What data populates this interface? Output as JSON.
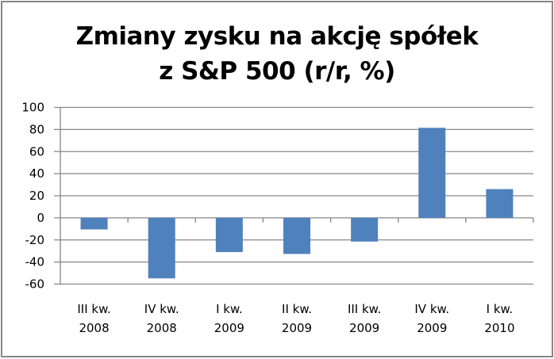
{
  "colors": {
    "bar": "#4F81BD",
    "grid": "#868686",
    "border": "#878787",
    "text": "#000000"
  },
  "chart_data": {
    "type": "bar",
    "title": "Zmiany zysku na akcję spółek z S&P 500 (r/r, %)",
    "title_lines": [
      "Zmiany zysku na akcję spółek",
      "z S&P 500 (r/r, %)"
    ],
    "categories": [
      [
        "III kw.",
        "2008"
      ],
      [
        "IV kw.",
        "2008"
      ],
      [
        "I kw.",
        "2009"
      ],
      [
        "II kw.",
        "2009"
      ],
      [
        "III kw.",
        "2009"
      ],
      [
        "IV kw.",
        "2009"
      ],
      [
        "I kw.",
        "2010"
      ]
    ],
    "category_labels": [
      "III kw. 2008",
      "IV kw. 2008",
      "I kw. 2009",
      "II kw. 2009",
      "III kw. 2009",
      "IV kw. 2009",
      "I kw. 2010"
    ],
    "values": [
      -10.5,
      -54.8,
      -31,
      -32.7,
      -21.5,
      81.5,
      26
    ],
    "xlabel": "",
    "ylabel": "",
    "ylim": [
      -60,
      100
    ],
    "yticks": [
      100,
      80,
      60,
      40,
      20,
      0,
      -20,
      -40,
      -60
    ],
    "grid": true,
    "legend": "none"
  }
}
